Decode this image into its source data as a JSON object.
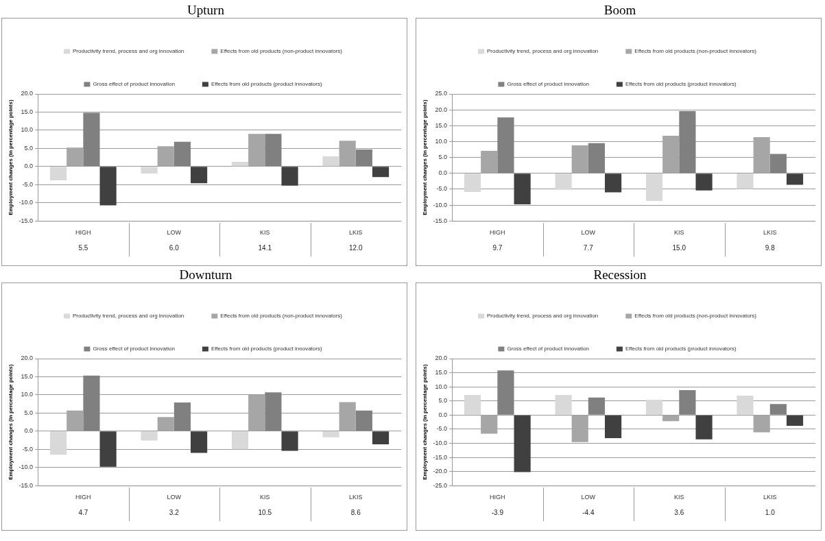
{
  "chart_data": [
    {
      "type": "bar",
      "title": "Upturn",
      "ylabel": "Employment changes (in percentage points)",
      "categories": [
        "HIGH",
        "LOW",
        "KIS",
        "LKIS"
      ],
      "ylim": [
        -15,
        20
      ],
      "yticks": [
        {
          "value": -15,
          "label": "-15.0"
        },
        {
          "value": -10,
          "label": "-10.0"
        },
        {
          "value": -5,
          "label": "-5.0"
        },
        {
          "value": 0,
          "label": "0.0"
        },
        {
          "value": 5,
          "label": "5.0"
        },
        {
          "value": 10,
          "label": "10.0"
        },
        {
          "value": 15,
          "label": "15.0"
        },
        {
          "value": 20,
          "label": "20.0"
        }
      ],
      "grid": "y",
      "legend": "top",
      "series": [
        {
          "name": "Productivity trend, process and org innovation",
          "color": "#d9d9d9",
          "values": [
            -3.8,
            -1.9,
            1.3,
            2.8
          ]
        },
        {
          "name": "Effects from old products (non-product innovators)",
          "color": "#a6a6a6",
          "values": [
            5.2,
            5.6,
            9.0,
            7.1
          ]
        },
        {
          "name": "Gross effect of product innovation",
          "color": "#808080",
          "values": [
            14.8,
            6.8,
            9.0,
            4.7
          ]
        },
        {
          "name": "Effects from old products (product innovators)",
          "color": "#404040",
          "values": [
            -10.7,
            -4.6,
            -5.3,
            -2.9
          ]
        }
      ],
      "annotations": [
        "5.5",
        "6.0",
        "14.1",
        "12.0"
      ]
    },
    {
      "type": "bar",
      "title": "Boom",
      "ylabel": "Employment changes (in percentage points)",
      "categories": [
        "HIGH",
        "LOW",
        "KIS",
        "LKIS"
      ],
      "ylim": [
        -15,
        25
      ],
      "yticks": [
        {
          "value": -15,
          "label": "-15.0"
        },
        {
          "value": -10,
          "label": "-10.0"
        },
        {
          "value": -5,
          "label": "-5.0"
        },
        {
          "value": 0,
          "label": "0.0"
        },
        {
          "value": 5,
          "label": "5.0"
        },
        {
          "value": 10,
          "label": "10.0"
        },
        {
          "value": 15,
          "label": "15.0"
        },
        {
          "value": 20,
          "label": "20.0"
        },
        {
          "value": 25,
          "label": "25.0"
        }
      ],
      "grid": "y",
      "legend": "top",
      "series": [
        {
          "name": "Productivity trend, process and org innovation",
          "color": "#d9d9d9",
          "values": [
            -5.9,
            -5.2,
            -8.7,
            -4.9
          ]
        },
        {
          "name": "Effects from old products (non-product innovators)",
          "color": "#a6a6a6",
          "values": [
            7.1,
            8.8,
            11.8,
            11.4
          ]
        },
        {
          "name": "Gross effect of product innovation",
          "color": "#808080",
          "values": [
            17.6,
            9.5,
            19.6,
            6.1
          ]
        },
        {
          "name": "Effects from old products (product innovators)",
          "color": "#404040",
          "values": [
            -9.8,
            -6.0,
            -5.4,
            -3.6
          ]
        }
      ],
      "annotations": [
        "9.7",
        "7.7",
        "15.0",
        "9.8"
      ]
    },
    {
      "type": "bar",
      "title": "Downturn",
      "ylabel": "Employment changes (in percentage points)",
      "categories": [
        "HIGH",
        "LOW",
        "KIS",
        "LKIS"
      ],
      "ylim": [
        -15,
        20
      ],
      "yticks": [
        {
          "value": -15,
          "label": "-15.0"
        },
        {
          "value": -10,
          "label": "-10.0"
        },
        {
          "value": -5,
          "label": "-5.0"
        },
        {
          "value": 0,
          "label": "0.0"
        },
        {
          "value": 5,
          "label": "5.0"
        },
        {
          "value": 10,
          "label": "10.0"
        },
        {
          "value": 15,
          "label": "15.0"
        },
        {
          "value": 20,
          "label": "20.0"
        }
      ],
      "grid": "y",
      "legend": "top",
      "series": [
        {
          "name": "Productivity trend, process and org innovation",
          "color": "#d9d9d9",
          "values": [
            -6.5,
            -2.6,
            -5.0,
            -1.7
          ]
        },
        {
          "name": "Effects from old products (non-product innovators)",
          "color": "#a6a6a6",
          "values": [
            5.7,
            3.9,
            10.0,
            8.0
          ]
        },
        {
          "name": "Gross effect of product innovation",
          "color": "#808080",
          "values": [
            15.3,
            7.9,
            10.7,
            5.7
          ]
        },
        {
          "name": "Effects from old products (product innovators)",
          "color": "#404040",
          "values": [
            -9.8,
            -6.0,
            -5.4,
            -3.6
          ]
        }
      ],
      "annotations": [
        "4.7",
        "3.2",
        "10.5",
        "8.6"
      ]
    },
    {
      "type": "bar",
      "title": "Recession",
      "ylabel": "Employment changes (in percentage points)",
      "categories": [
        "HIGH",
        "LOW",
        "KIS",
        "LKIS"
      ],
      "ylim": [
        -25,
        20
      ],
      "yticks": [
        {
          "value": -25,
          "label": "-25.0"
        },
        {
          "value": -20,
          "label": "-20.0"
        },
        {
          "value": -15,
          "label": "-15.0"
        },
        {
          "value": -10,
          "label": "-10.0"
        },
        {
          "value": -5,
          "label": "-5.0"
        },
        {
          "value": 0,
          "label": "0.0"
        },
        {
          "value": 5,
          "label": "5.0"
        },
        {
          "value": 10,
          "label": "10.0"
        },
        {
          "value": 15,
          "label": "15.0"
        },
        {
          "value": 20,
          "label": "20.0"
        }
      ],
      "grid": "y",
      "legend": "top",
      "series": [
        {
          "name": "Productivity trend, process and org innovation",
          "color": "#d9d9d9",
          "values": [
            7.1,
            7.1,
            5.4,
            6.9
          ]
        },
        {
          "name": "Effects from old products (non-product innovators)",
          "color": "#a6a6a6",
          "values": [
            -6.6,
            -9.6,
            -2.2,
            -6.1
          ]
        },
        {
          "name": "Gross effect of product innovation",
          "color": "#808080",
          "values": [
            15.8,
            6.2,
            8.8,
            3.9
          ]
        },
        {
          "name": "Effects from old products (product innovators)",
          "color": "#404040",
          "values": [
            -20.2,
            -8.2,
            -8.6,
            -3.8
          ]
        }
      ],
      "annotations": [
        "-3.9",
        "-4.4",
        "3.6",
        "1.0"
      ]
    }
  ]
}
